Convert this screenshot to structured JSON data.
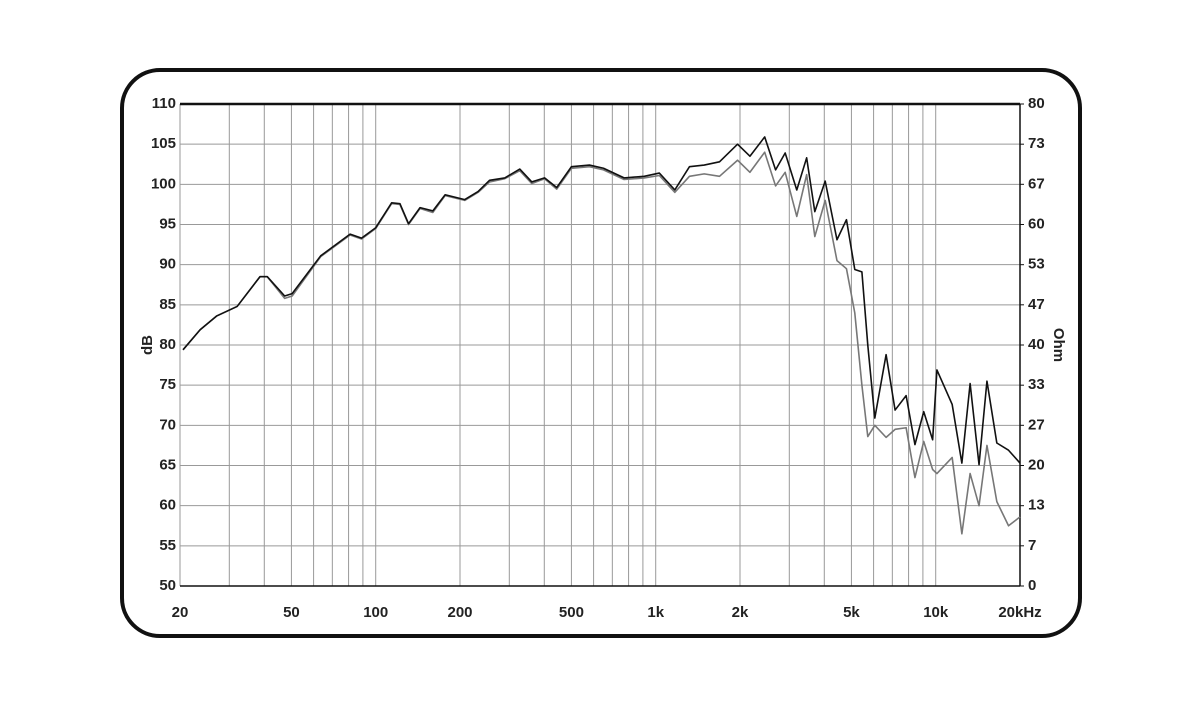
{
  "chart_data": {
    "type": "line",
    "x_log": true,
    "xlim": [
      20,
      20000
    ],
    "xticks": [
      {
        "value": 20,
        "label": "20"
      },
      {
        "value": 30,
        "label": null
      },
      {
        "value": 40,
        "label": null
      },
      50,
      {
        "value": 60,
        "label": null
      },
      {
        "value": 70,
        "label": null
      },
      {
        "value": 80,
        "label": null
      },
      {
        "value": 90,
        "label": null
      },
      100,
      200,
      {
        "value": 300,
        "label": null
      },
      {
        "value": 400,
        "label": null
      },
      500,
      {
        "value": 600,
        "label": null
      },
      {
        "value": 700,
        "label": null
      },
      {
        "value": 800,
        "label": null
      },
      {
        "value": 900,
        "label": null
      },
      {
        "value": 1000,
        "label": "1k"
      },
      {
        "value": 2000,
        "label": "2k"
      },
      {
        "value": 3000,
        "label": null
      },
      {
        "value": 4000,
        "label": null
      },
      {
        "value": 5000,
        "label": "5k"
      },
      {
        "value": 6000,
        "label": null
      },
      {
        "value": 7000,
        "label": null
      },
      {
        "value": 8000,
        "label": null
      },
      {
        "value": 9000,
        "label": null
      },
      {
        "value": 10000,
        "label": "10k"
      },
      {
        "value": 20000,
        "label": "20kHz"
      }
    ],
    "ylabel": "dB",
    "ylim": [
      50,
      110
    ],
    "yticks": [
      50,
      55,
      60,
      65,
      70,
      75,
      80,
      85,
      90,
      95,
      100,
      105,
      110
    ],
    "y2label": "Ohm",
    "y2lim": [
      0,
      80
    ],
    "y2ticks": [
      0,
      {
        "value": 6.67,
        "label": "7"
      },
      {
        "value": 13.33,
        "label": "13"
      },
      20,
      {
        "value": 26.67,
        "label": "27"
      },
      {
        "value": 33.33,
        "label": "33"
      },
      40,
      {
        "value": 46.67,
        "label": "47"
      },
      {
        "value": 53.33,
        "label": "53"
      },
      60,
      {
        "value": 66.67,
        "label": "67"
      },
      {
        "value": 73.33,
        "label": "73"
      },
      80
    ],
    "grid": true,
    "x": [
      20.5,
      23.6,
      27,
      32,
      38.6,
      41,
      47.3,
      50.3,
      63.6,
      81,
      89,
      100,
      114,
      122,
      131,
      144,
      160,
      177,
      208,
      232,
      255,
      289,
      327,
      361,
      401,
      443,
      500,
      580,
      651,
      771,
      910,
      1030,
      1170,
      1320,
      1490,
      1690,
      1960,
      2170,
      2450,
      2680,
      2900,
      3190,
      3460,
      3700,
      4030,
      4440,
      4800,
      5140,
      5450,
      5720,
      6060,
      6650,
      7160,
      7840,
      8430,
      9060,
      9750,
      10100,
      11450,
      12400,
      13270,
      14280,
      15240,
      16530,
      18200,
      20000
    ],
    "series": [
      {
        "color": "#777777",
        "values": [
          79.4,
          81.9,
          83.6,
          84.8,
          88.5,
          88.5,
          85.8,
          86.1,
          91.0,
          93.7,
          93.2,
          94.5,
          97.6,
          97.5,
          95.0,
          97.0,
          96.5,
          98.6,
          98.0,
          99.0,
          100.3,
          100.7,
          101.7,
          100.1,
          100.7,
          99.4,
          102.0,
          102.2,
          101.8,
          100.6,
          100.8,
          101.1,
          99.0,
          101.0,
          101.3,
          101.0,
          103.0,
          101.5,
          104.0,
          99.8,
          101.5,
          96.0,
          101.2,
          93.5,
          98.0,
          90.5,
          89.5,
          84.0,
          75.0,
          68.6,
          70.0,
          68.5,
          69.5,
          69.7,
          63.5,
          68.0,
          64.5,
          64.0,
          66.0,
          56.5,
          64.0,
          60.0,
          67.5,
          60.5,
          57.5,
          58.6
        ]
      },
      {
        "color": "#111111",
        "values": [
          79.4,
          81.9,
          83.6,
          84.8,
          88.5,
          88.5,
          86.1,
          86.4,
          91.1,
          93.8,
          93.3,
          94.6,
          97.7,
          97.6,
          95.1,
          97.1,
          96.7,
          98.7,
          98.1,
          99.1,
          100.5,
          100.8,
          101.9,
          100.3,
          100.8,
          99.6,
          102.2,
          102.4,
          102.0,
          100.8,
          101.0,
          101.4,
          99.3,
          102.2,
          102.4,
          102.8,
          105.0,
          103.5,
          105.9,
          101.8,
          103.9,
          99.3,
          103.3,
          96.6,
          100.4,
          93.1,
          95.6,
          89.4,
          89.1,
          80.0,
          70.9,
          78.8,
          71.9,
          73.7,
          67.6,
          71.7,
          68.2,
          76.9,
          72.6,
          65.3,
          75.2,
          65.1,
          75.5,
          67.8,
          66.9,
          65.3
        ]
      }
    ]
  }
}
